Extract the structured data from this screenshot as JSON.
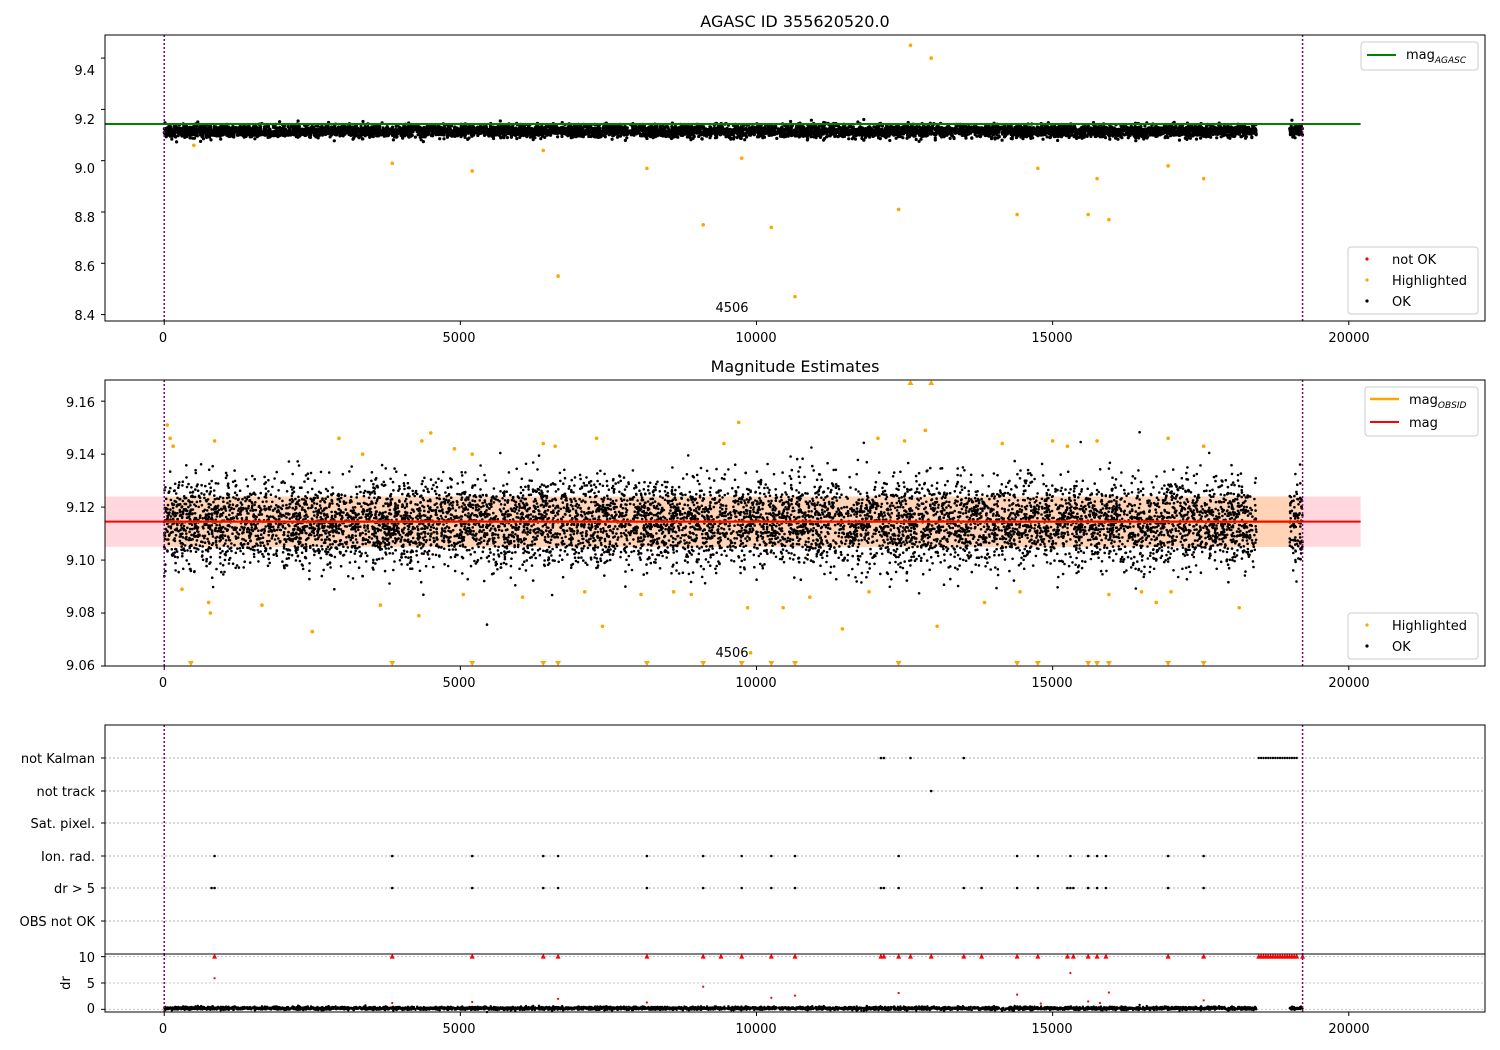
{
  "window": {
    "title": "AGASC ID 355620520.0"
  },
  "colors": {
    "ok": "#000000",
    "highlighted": "#ffa500",
    "not_ok": "#ff0000",
    "mag_agasc": "#008000",
    "mag_obsid": "#ffa500",
    "mag": "#ff0000",
    "obsid_boundary": "#800080",
    "band_red": "#ffd7dc",
    "band_orange": "#ffd3b6"
  },
  "chart_data": [
    {
      "type": "scatter",
      "title": "AGASC ID 355620520.0",
      "xlim": [
        -1000,
        22300
      ],
      "ylim": [
        8.375,
        9.49
      ],
      "xticks": [
        0,
        5000,
        10000,
        15000,
        20000
      ],
      "xtick_labels": [
        "0",
        "5000",
        "10000",
        "15000",
        "20000"
      ],
      "yticks": [
        8.4,
        8.6,
        8.8,
        9.0,
        9.2,
        9.4
      ],
      "ytick_labels": [
        "8.4",
        "8.6",
        "8.8",
        "9.0",
        "9.2",
        "9.4"
      ],
      "obsid_boundaries": [
        0,
        19220
      ],
      "obsid_label": {
        "text": "4506",
        "x": 9600
      },
      "ok_band": {
        "segments": [
          [
            0,
            18440
          ],
          [
            19000,
            19220
          ]
        ],
        "center": 9.115,
        "spread": 0.012
      },
      "reference_lines": [
        {
          "name": "mag_AGASC",
          "value": 9.143,
          "x": [
            -1000,
            20200
          ]
        }
      ],
      "highlighted_points": [
        [
          500,
          9.06
        ],
        [
          3850,
          8.99
        ],
        [
          5200,
          8.96
        ],
        [
          6400,
          9.04
        ],
        [
          6650,
          8.55
        ],
        [
          8150,
          8.97
        ],
        [
          9100,
          8.75
        ],
        [
          9750,
          9.01
        ],
        [
          10250,
          8.74
        ],
        [
          10650,
          8.47
        ],
        [
          12400,
          8.81
        ],
        [
          12600,
          9.45
        ],
        [
          12950,
          9.4
        ],
        [
          14400,
          8.79
        ],
        [
          14750,
          8.97
        ],
        [
          15600,
          8.79
        ],
        [
          15750,
          8.93
        ],
        [
          15950,
          8.77
        ],
        [
          16950,
          8.98
        ],
        [
          17550,
          8.93
        ]
      ],
      "not_ok_points": [],
      "legend_lines": {
        "entries": [
          {
            "label": "mag",
            "subscript": "AGASC"
          }
        ],
        "loc": "upper right"
      },
      "legend_points": {
        "entries": [
          "not OK",
          "Highlighted",
          "OK"
        ],
        "loc": "lower right"
      }
    },
    {
      "type": "scatter",
      "title": "Magnitude Estimates",
      "xlim": [
        -1000,
        22300
      ],
      "ylim": [
        9.06,
        9.168
      ],
      "xticks": [
        0,
        5000,
        10000,
        15000,
        20000
      ],
      "xtick_labels": [
        "0",
        "5000",
        "10000",
        "15000",
        "20000"
      ],
      "yticks": [
        9.06,
        9.08,
        9.1,
        9.12,
        9.14,
        9.16
      ],
      "ytick_labels": [
        "9.06",
        "9.08",
        "9.10",
        "9.12",
        "9.14",
        "9.16"
      ],
      "obsid_boundaries": [
        0,
        19220
      ],
      "obsid_label": {
        "text": "4506",
        "x": 9600
      },
      "ok_band": {
        "segments": [
          [
            0,
            18440
          ],
          [
            19000,
            19220
          ]
        ],
        "center": 9.114,
        "spread": 0.008
      },
      "bands": [
        {
          "name": "mag",
          "y": [
            9.105,
            9.124
          ],
          "x": [
            -1000,
            20200
          ]
        },
        {
          "name": "mag_OBSID",
          "y": [
            9.105,
            9.124
          ],
          "x": [
            0,
            19220
          ]
        }
      ],
      "reference_lines": [
        {
          "name": "mag_OBSID",
          "value": 9.1145,
          "x": [
            0,
            19220
          ]
        },
        {
          "name": "mag",
          "value": 9.1145,
          "x": [
            -1000,
            20200
          ]
        }
      ],
      "highlighted_points": [
        [
          50,
          9.151
        ],
        [
          100,
          9.146
        ],
        [
          150,
          9.143
        ],
        [
          300,
          9.089
        ],
        [
          750,
          9.084
        ],
        [
          780,
          9.08
        ],
        [
          850,
          9.145
        ],
        [
          1650,
          9.083
        ],
        [
          2500,
          9.073
        ],
        [
          2950,
          9.146
        ],
        [
          3350,
          9.14
        ],
        [
          3650,
          9.083
        ],
        [
          4300,
          9.079
        ],
        [
          4350,
          9.145
        ],
        [
          4500,
          9.148
        ],
        [
          4900,
          9.142
        ],
        [
          5050,
          9.087
        ],
        [
          5200,
          9.14
        ],
        [
          6050,
          9.086
        ],
        [
          6400,
          9.144
        ],
        [
          6600,
          9.143
        ],
        [
          7100,
          9.088
        ],
        [
          7300,
          9.146
        ],
        [
          7400,
          9.075
        ],
        [
          8050,
          9.087
        ],
        [
          8600,
          9.088
        ],
        [
          8900,
          9.087
        ],
        [
          9450,
          9.144
        ],
        [
          9700,
          9.152
        ],
        [
          9850,
          9.082
        ],
        [
          9900,
          9.065
        ],
        [
          10450,
          9.082
        ],
        [
          10900,
          9.086
        ],
        [
          11450,
          9.074
        ],
        [
          11900,
          9.088
        ],
        [
          12050,
          9.146
        ],
        [
          12500,
          9.145
        ],
        [
          12850,
          9.149
        ],
        [
          13050,
          9.075
        ],
        [
          13850,
          9.084
        ],
        [
          14150,
          9.144
        ],
        [
          14450,
          9.088
        ],
        [
          15000,
          9.145
        ],
        [
          15250,
          9.143
        ],
        [
          15750,
          9.145
        ],
        [
          15950,
          9.087
        ],
        [
          16500,
          9.088
        ],
        [
          16750,
          9.084
        ],
        [
          16950,
          9.146
        ],
        [
          17000,
          9.088
        ],
        [
          17550,
          9.143
        ],
        [
          18150,
          9.082
        ]
      ],
      "out_of_range_low": [
        450,
        3850,
        5200,
        6400,
        6650,
        8150,
        9100,
        9750,
        10250,
        10650,
        12400,
        14400,
        14750,
        15600,
        15750,
        15950,
        16950,
        17550
      ],
      "out_of_range_high": [
        12600,
        12950
      ],
      "legend_lines": {
        "entries": [
          {
            "label": "mag",
            "subscript": "OBSID"
          },
          {
            "label": "mag",
            "subscript": ""
          }
        ],
        "loc": "upper right"
      },
      "legend_points": {
        "entries": [
          "Highlighted",
          "OK"
        ],
        "loc": "lower right"
      }
    },
    {
      "type": "scatter",
      "title": "",
      "xlim": [
        -1000,
        22300
      ],
      "xticks": [
        0,
        5000,
        10000,
        15000,
        20000
      ],
      "xtick_labels": [
        "0",
        "5000",
        "10000",
        "15000",
        "20000"
      ],
      "obsid_boundaries": [
        0,
        19220
      ],
      "flag_rows": [
        "not Kalman",
        "not track",
        "Sat. pixel.",
        "Ion. rad.",
        "dr > 5",
        "OBS not OK"
      ],
      "flag_points": {
        "not Kalman": {
          "points": [
            12100,
            12150,
            12600,
            13500
          ],
          "runs": [
            [
              18480,
              19140
            ]
          ]
        },
        "not track": {
          "points": [
            12950
          ],
          "runs": []
        },
        "Sat. pixel.": {
          "points": [],
          "runs": []
        },
        "Ion. rad.": {
          "points": [
            850,
            3850,
            5200,
            6400,
            6650,
            8150,
            9100,
            9750,
            10250,
            10650,
            12400,
            14400,
            14750,
            15300,
            15600,
            15750,
            15900,
            16950,
            17550
          ],
          "runs": []
        },
        "dr > 5": {
          "points": [
            800,
            850,
            3850,
            5200,
            6400,
            6650,
            8150,
            9100,
            9750,
            10250,
            10650,
            12100,
            12150,
            12400,
            13500,
            13800,
            14400,
            14750,
            15250,
            15300,
            15350,
            15600,
            15750,
            15900,
            16950,
            17550
          ],
          "runs": []
        },
        "OBS not OK": {
          "points": [],
          "runs": []
        }
      },
      "dr_axis": {
        "ylabel": "dr",
        "ylim": [
          -0.5,
          10.5
        ],
        "yticks": [
          0,
          5,
          10
        ],
        "ytick_labels": [
          "0",
          "5",
          "10"
        ]
      },
      "dr_capped": {
        "value": 10,
        "points": [
          850,
          3850,
          5200,
          6400,
          6650,
          8150,
          9100,
          9400,
          9750,
          10250,
          10650,
          12100,
          12150,
          12400,
          12600,
          12950,
          13500,
          13800,
          14400,
          14750,
          15250,
          15350,
          15600,
          15750,
          15900,
          16950,
          17550,
          19220
        ],
        "runs": [
          [
            18480,
            19140
          ]
        ]
      },
      "dr_points": [
        [
          850,
          5.9
        ],
        [
          9100,
          4.3
        ],
        [
          15300,
          6.9
        ],
        [
          12400,
          3.1
        ],
        [
          15950,
          3.2
        ],
        [
          14400,
          2.8
        ],
        [
          10650,
          2.6
        ],
        [
          6650,
          2.0
        ],
        [
          10250,
          2.2
        ],
        [
          17550,
          1.7
        ],
        [
          5200,
          1.4
        ],
        [
          8150,
          1.3
        ],
        [
          15600,
          1.5
        ],
        [
          3850,
          1.2
        ],
        [
          15800,
          1.2
        ],
        [
          14800,
          1.1
        ]
      ],
      "dr_band": {
        "segments": [
          [
            0,
            18440
          ],
          [
            19000,
            19220
          ]
        ],
        "center": 0.2,
        "spread": 0.15
      }
    }
  ]
}
